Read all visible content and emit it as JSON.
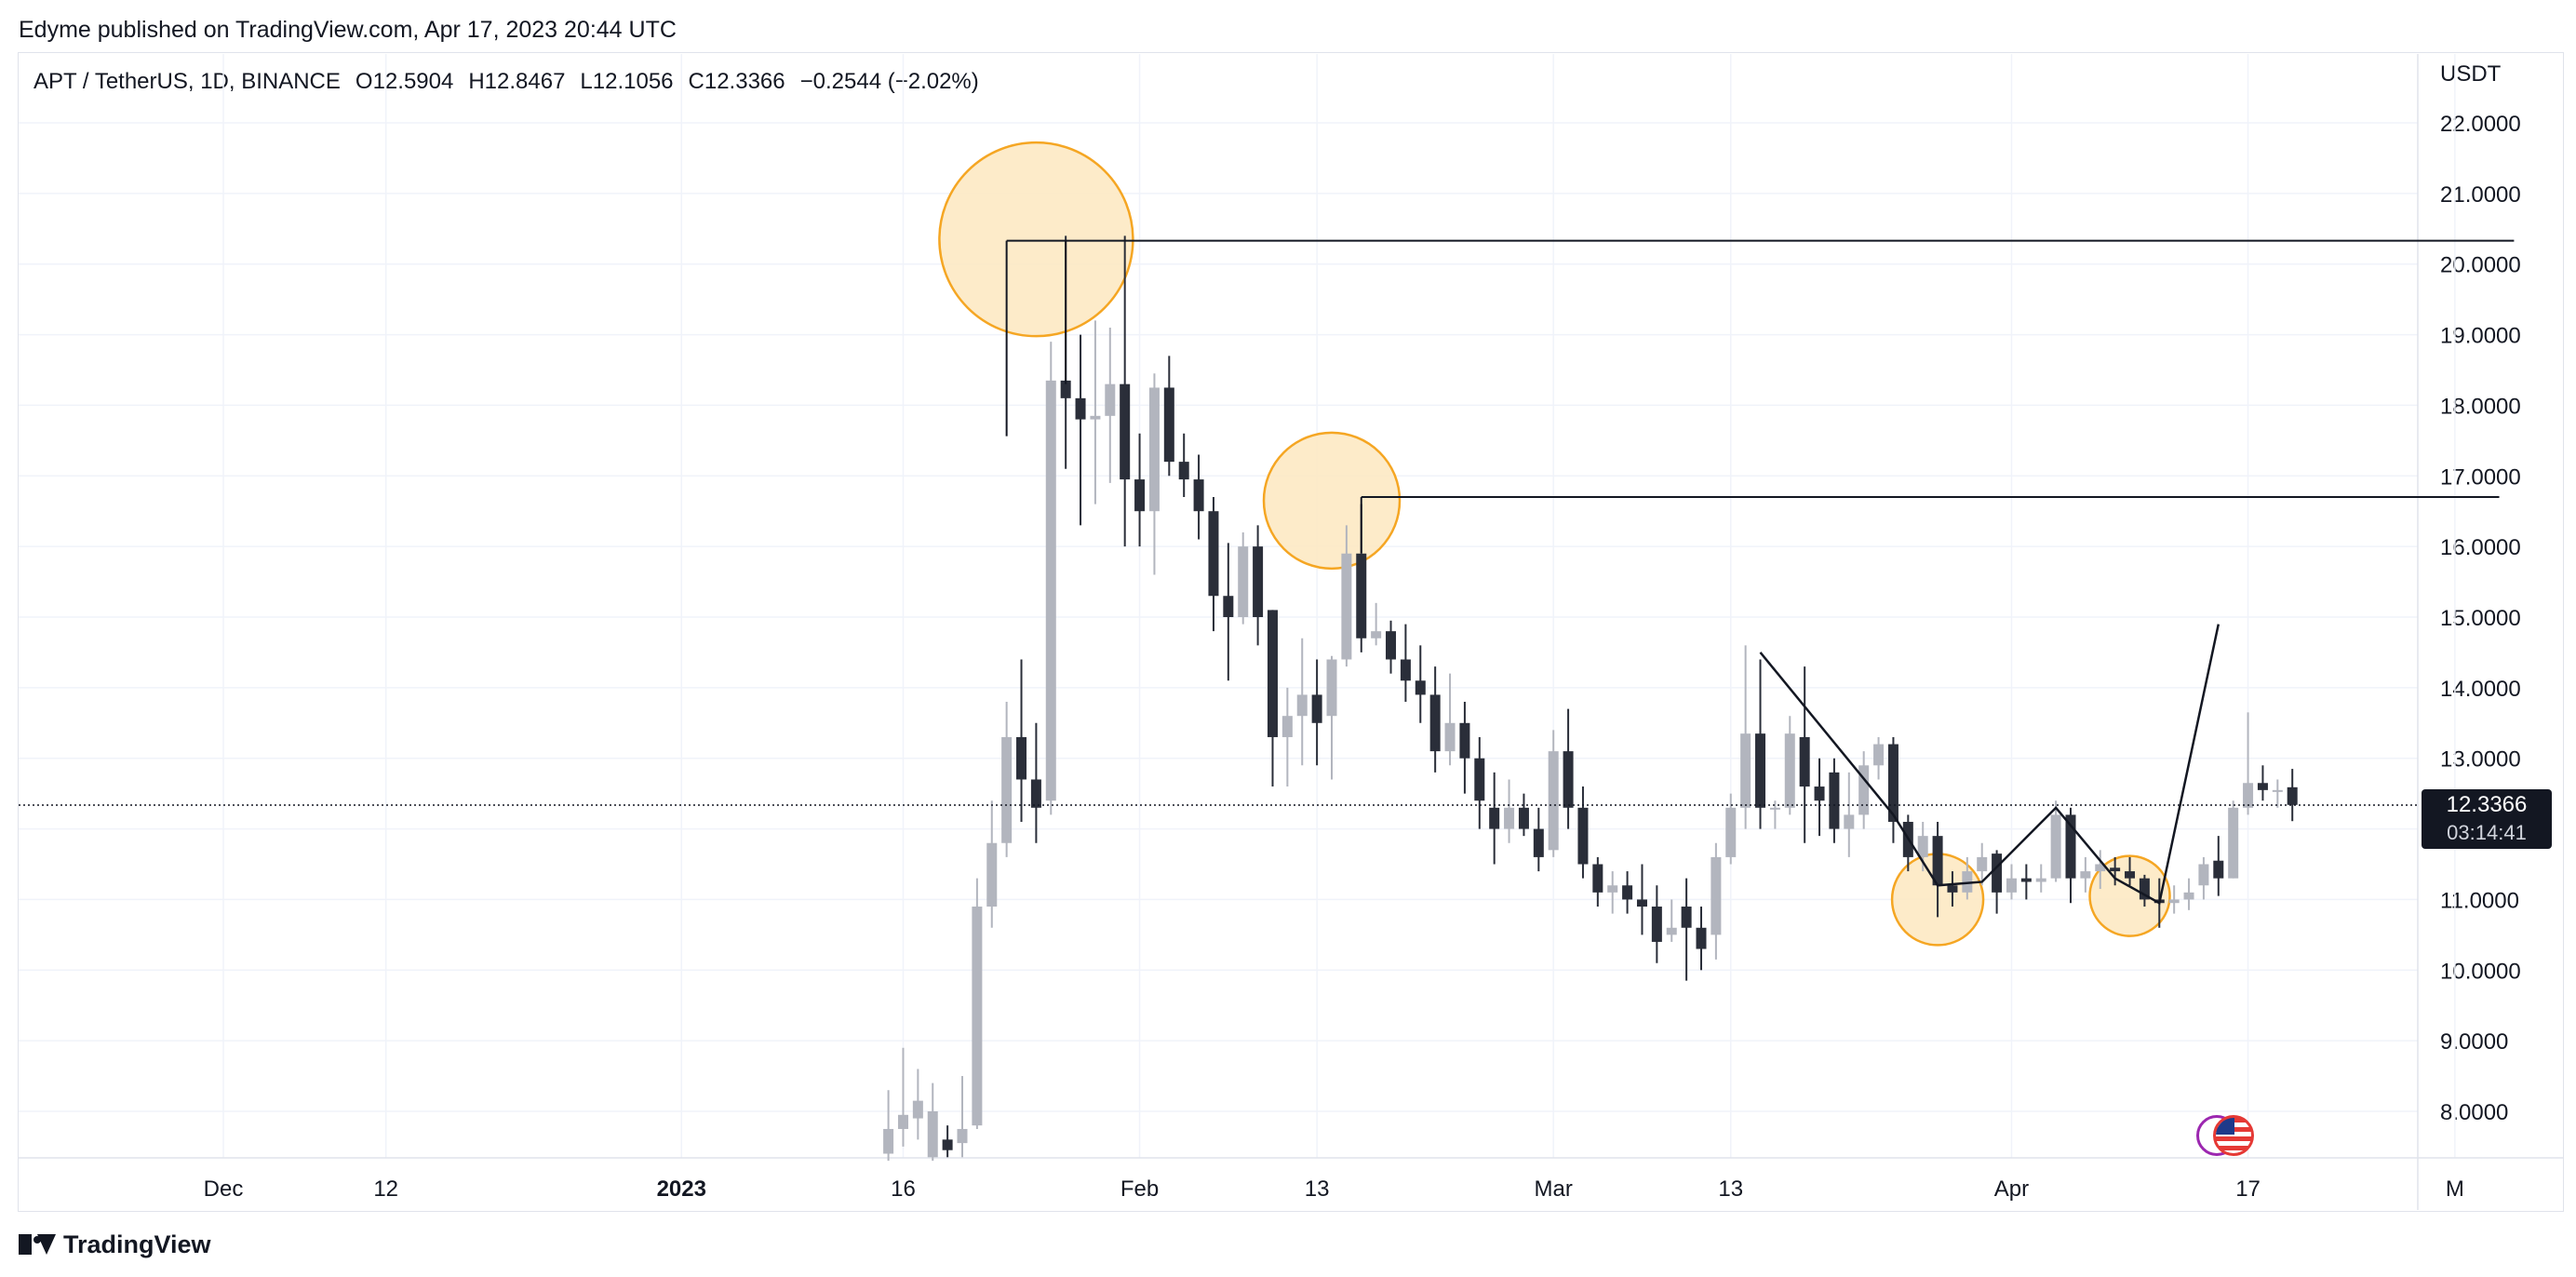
{
  "header": {
    "published": "Edyme published on TradingView.com, Apr 17, 2023 20:44 UTC"
  },
  "legend": {
    "symbol": "APT / TetherUS, 1D, BINANCE",
    "open": "O12.5904",
    "high": "H12.8467",
    "low": "L12.1056",
    "close": "C12.3366",
    "change": "−0.2544 (−2.02%)"
  },
  "price_tag": {
    "price": "12.3366",
    "countdown": "03:14:41"
  },
  "branding": {
    "logo_text": "TradingView"
  },
  "colors": {
    "up": "#b2b5be",
    "down": "#2a2e39",
    "highlight_fill": "#fde7c0",
    "highlight_stroke": "#f5a623",
    "line": "#131722"
  },
  "chart_data": {
    "type": "candlestick",
    "title": "",
    "unit": "USDT",
    "ylim": [
      7.3,
      22.7
    ],
    "y_ticks": [
      "22.0000",
      "21.0000",
      "20.0000",
      "19.0000",
      "18.0000",
      "17.0000",
      "16.0000",
      "15.0000",
      "14.0000",
      "13.0000",
      "12.0000",
      "11.0000",
      "10.0000",
      "9.0000",
      "8.0000"
    ],
    "x_ticks": [
      {
        "label": "Dec",
        "date": "2022-12-01",
        "bold": false
      },
      {
        "label": "12",
        "date": "2022-12-12",
        "bold": false
      },
      {
        "label": "2023",
        "date": "2023-01-01",
        "bold": true
      },
      {
        "label": "16",
        "date": "2023-01-16",
        "bold": false
      },
      {
        "label": "Feb",
        "date": "2023-02-01",
        "bold": false
      },
      {
        "label": "13",
        "date": "2023-02-13",
        "bold": false
      },
      {
        "label": "Mar",
        "date": "2023-03-01",
        "bold": false
      },
      {
        "label": "13",
        "date": "2023-03-13",
        "bold": false
      },
      {
        "label": "Apr",
        "date": "2023-04-01",
        "bold": false
      },
      {
        "label": "17",
        "date": "2023-04-17",
        "bold": false
      },
      {
        "label": "M",
        "date": "2023-05-01",
        "bold": false
      }
    ],
    "grid": true,
    "current_price": 12.3366,
    "first_date": "2023-01-15",
    "candles": [
      [
        7.4,
        7.75,
        7.3,
        8.3
      ],
      [
        7.75,
        7.95,
        7.5,
        8.9
      ],
      [
        7.9,
        8.15,
        7.6,
        8.6
      ],
      [
        7.35,
        8.0,
        7.3,
        8.4
      ],
      [
        7.6,
        7.45,
        7.35,
        7.8
      ],
      [
        7.55,
        7.75,
        7.35,
        8.5
      ],
      [
        7.8,
        10.9,
        7.75,
        11.3
      ],
      [
        10.9,
        11.8,
        10.6,
        12.4
      ],
      [
        11.8,
        13.3,
        11.6,
        13.8
      ],
      [
        13.3,
        12.7,
        12.1,
        14.4
      ],
      [
        12.7,
        12.3,
        11.8,
        13.5
      ],
      [
        12.4,
        18.35,
        12.2,
        18.9
      ],
      [
        18.35,
        18.1,
        17.1,
        20.4
      ],
      [
        18.1,
        17.8,
        16.3,
        19.0
      ],
      [
        17.8,
        17.85,
        16.6,
        19.2
      ],
      [
        17.85,
        18.3,
        16.9,
        19.1
      ],
      [
        18.3,
        16.95,
        16.0,
        20.4
      ],
      [
        16.95,
        16.5,
        16.0,
        17.6
      ],
      [
        16.5,
        18.25,
        15.6,
        18.45
      ],
      [
        18.25,
        17.2,
        17.0,
        18.7
      ],
      [
        17.2,
        16.95,
        16.7,
        17.6
      ],
      [
        16.95,
        16.5,
        16.1,
        17.3
      ],
      [
        16.5,
        15.3,
        14.8,
        16.7
      ],
      [
        15.3,
        15.0,
        14.1,
        16.05
      ],
      [
        15.0,
        16.0,
        14.9,
        16.2
      ],
      [
        16.0,
        15.0,
        14.6,
        16.3
      ],
      [
        15.1,
        13.3,
        12.6,
        15.1
      ],
      [
        13.3,
        13.6,
        12.6,
        14.0
      ],
      [
        13.6,
        13.9,
        12.9,
        14.7
      ],
      [
        13.9,
        13.5,
        12.9,
        14.4
      ],
      [
        13.6,
        14.4,
        12.7,
        14.45
      ],
      [
        14.4,
        15.9,
        14.3,
        16.3
      ],
      [
        15.9,
        14.7,
        14.5,
        16.6
      ],
      [
        14.7,
        14.8,
        14.6,
        15.2
      ],
      [
        14.8,
        14.4,
        14.2,
        14.95
      ],
      [
        14.4,
        14.1,
        13.8,
        14.9
      ],
      [
        14.1,
        13.9,
        13.5,
        14.6
      ],
      [
        13.9,
        13.1,
        12.8,
        14.3
      ],
      [
        13.1,
        13.5,
        12.9,
        14.2
      ],
      [
        13.5,
        13.0,
        12.5,
        13.8
      ],
      [
        13.0,
        12.4,
        12.0,
        13.3
      ],
      [
        12.3,
        12.0,
        11.5,
        12.8
      ],
      [
        12.0,
        12.3,
        11.8,
        12.7
      ],
      [
        12.3,
        12.0,
        11.9,
        12.5
      ],
      [
        12.0,
        11.6,
        11.4,
        12.3
      ],
      [
        11.7,
        13.1,
        11.6,
        13.4
      ],
      [
        13.1,
        12.3,
        12.0,
        13.7
      ],
      [
        12.3,
        11.5,
        11.3,
        12.6
      ],
      [
        11.5,
        11.1,
        10.9,
        11.6
      ],
      [
        11.1,
        11.2,
        10.8,
        11.4
      ],
      [
        11.2,
        11.0,
        10.8,
        11.4
      ],
      [
        11.0,
        10.9,
        10.5,
        11.5
      ],
      [
        10.9,
        10.4,
        10.1,
        11.2
      ],
      [
        10.5,
        10.6,
        10.4,
        11.0
      ],
      [
        10.9,
        10.6,
        9.85,
        11.3
      ],
      [
        10.6,
        10.3,
        10.0,
        10.9
      ],
      [
        10.5,
        11.6,
        10.15,
        11.8
      ],
      [
        11.6,
        12.3,
        11.5,
        12.5
      ],
      [
        12.3,
        13.35,
        12.0,
        14.6
      ],
      [
        13.35,
        12.3,
        12.0,
        14.4
      ],
      [
        12.3,
        12.3,
        12.0,
        12.4
      ],
      [
        12.3,
        13.35,
        12.2,
        13.6
      ],
      [
        13.3,
        12.6,
        11.8,
        14.3
      ],
      [
        12.6,
        12.4,
        11.9,
        13.0
      ],
      [
        12.8,
        12.0,
        11.8,
        13.0
      ],
      [
        12.0,
        12.2,
        11.6,
        12.8
      ],
      [
        12.2,
        12.9,
        12.0,
        13.1
      ],
      [
        12.9,
        13.2,
        12.7,
        13.3
      ],
      [
        13.2,
        12.1,
        11.8,
        13.3
      ],
      [
        12.1,
        11.6,
        11.4,
        12.2
      ],
      [
        11.6,
        11.9,
        11.4,
        12.1
      ],
      [
        11.9,
        11.2,
        10.75,
        12.1
      ],
      [
        11.2,
        11.1,
        10.9,
        11.4
      ],
      [
        11.1,
        11.4,
        11.0,
        11.6
      ],
      [
        11.4,
        11.6,
        11.2,
        11.8
      ],
      [
        11.65,
        11.1,
        10.8,
        11.7
      ],
      [
        11.1,
        11.3,
        11.0,
        11.5
      ],
      [
        11.3,
        11.25,
        11.0,
        11.5
      ],
      [
        11.25,
        11.3,
        11.1,
        11.5
      ],
      [
        11.3,
        12.2,
        11.25,
        12.4
      ],
      [
        12.2,
        11.3,
        10.95,
        12.3
      ],
      [
        11.3,
        11.4,
        11.1,
        11.6
      ],
      [
        11.4,
        11.5,
        11.15,
        11.7
      ],
      [
        11.45,
        11.4,
        11.2,
        11.6
      ],
      [
        11.4,
        11.3,
        11.2,
        11.6
      ],
      [
        11.3,
        11.0,
        10.9,
        11.35
      ],
      [
        11.0,
        10.95,
        10.6,
        11.3
      ],
      [
        10.95,
        11.0,
        10.8,
        11.2
      ],
      [
        11.0,
        11.1,
        10.85,
        11.3
      ],
      [
        11.2,
        11.5,
        11.0,
        11.6
      ],
      [
        11.55,
        11.3,
        11.05,
        11.9
      ],
      [
        11.3,
        12.3,
        11.3,
        12.4
      ],
      [
        12.3,
        12.65,
        12.2,
        13.65
      ],
      [
        12.65,
        12.55,
        12.4,
        12.9
      ],
      [
        12.55,
        12.55,
        12.3,
        12.7
      ],
      [
        12.59,
        12.34,
        12.11,
        12.85
      ]
    ],
    "annotations": {
      "circles": [
        {
          "date": "2023-01-25",
          "price": 20.35
        },
        {
          "date": "2023-02-14",
          "price": 16.65
        },
        {
          "date": "2023-03-27",
          "price": 11.0
        },
        {
          "date": "2023-04-09",
          "price": 11.05
        }
      ],
      "hlines": [
        {
          "from": "2023-01-23",
          "to": "2023-05-05",
          "price": 20.33
        },
        {
          "from": "2023-02-16",
          "to": "2023-05-04",
          "price": 16.7
        }
      ],
      "trendlines": [
        {
          "points": [
            [
              "2023-03-15",
              14.5
            ],
            [
              "2023-03-24",
              12.2
            ]
          ]
        },
        {
          "points": [
            [
              "2023-03-24",
              12.2
            ],
            [
              "2023-03-27",
              11.2
            ],
            [
              "2023-03-30",
              11.25
            ],
            [
              "2023-04-04",
              12.3
            ],
            [
              "2023-04-08",
              11.3
            ],
            [
              "2023-04-11",
              10.95
            ],
            [
              "2023-04-15",
              14.9
            ]
          ]
        }
      ]
    }
  }
}
